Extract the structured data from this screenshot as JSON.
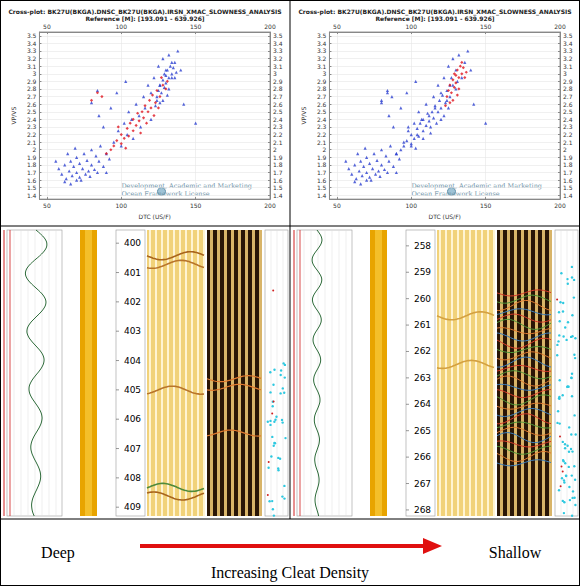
{
  "chart_data": [
    {
      "type": "scatter",
      "title": "Cross-plot: BK27U(BKGA).DNSC_BK27U(BKGA).IRSN_XMAC_SLOWNESS_ANALYSIS",
      "subtitle": "Reference [M]: [193.091 - 639.926]",
      "x_label": "DTC (US/F)",
      "y_label": "VP/VS",
      "xlim": [
        45,
        200
      ],
      "xticks": [
        50,
        100,
        150,
        200
      ],
      "ylim": [
        1.35,
        3.55
      ],
      "yticks": [
        1.4,
        1.5,
        1.6,
        1.7,
        1.8,
        1.9,
        2,
        2.1,
        2.2,
        2.3,
        2.4,
        2.5,
        2.6,
        2.7,
        2.8,
        2.9,
        3,
        3.1,
        3.2,
        3.3,
        3.4,
        3.5
      ],
      "grid": true,
      "series": [
        {
          "color": "#2a3fd0",
          "marker": "triangle",
          "x": [
            58,
            60,
            62,
            63,
            65,
            66,
            67,
            68,
            70,
            70,
            72,
            72,
            74,
            75,
            76,
            77,
            78,
            80,
            80,
            82,
            83,
            85,
            86,
            88,
            90,
            62,
            66,
            70,
            56,
            64,
            69,
            73,
            79,
            84,
            92,
            95,
            98,
            100,
            102,
            104,
            105,
            107,
            108,
            110,
            112,
            113,
            115,
            116,
            118,
            120,
            120,
            122,
            124,
            125,
            126,
            128,
            130,
            132,
            134,
            136,
            138,
            88,
            93,
            97,
            85,
            103,
            90,
            140,
            142,
            150,
            80,
            84,
            124,
            125,
            126,
            127,
            128,
            129,
            130,
            130,
            131,
            132,
            133,
            134,
            135,
            136,
            128,
            132,
            126,
            134,
            137,
            129,
            123,
            131
          ],
          "values": [
            1.75,
            1.68,
            1.8,
            1.62,
            1.72,
            1.85,
            1.66,
            1.78,
            1.7,
            1.9,
            1.64,
            1.82,
            1.75,
            1.95,
            1.68,
            1.86,
            1.72,
            1.8,
            2,
            1.74,
            1.92,
            1.85,
            2.05,
            1.78,
            1.95,
            1.58,
            1.55,
            1.6,
            1.85,
            1.95,
            2.02,
            1.6,
            1.65,
            1.7,
            1.88,
            2.1,
            2.25,
            2.05,
            2.35,
            2.2,
            2.5,
            2.4,
            2.15,
            2.6,
            2.45,
            2.3,
            2.7,
            2.55,
            2.85,
            2.4,
            2.75,
            2.95,
            2.65,
            3.1,
            2.85,
            3.2,
            3.05,
            3.25,
            2.95,
            3.15,
            3.3,
            2.3,
            2.55,
            2.75,
            2.45,
            2.9,
            1.7,
            3.05,
            2.6,
            2.35,
            2.62,
            2.78,
            2.7,
            2.78,
            2.85,
            2.75,
            2.92,
            2.82,
            2.98,
            2.88,
            3.05,
            2.95,
            3.1,
            3,
            3.08,
            2.95,
            2.65,
            2.8,
            2.62,
            3.15,
            3.02,
            3,
            2.58,
            2.72
          ]
        },
        {
          "color": "#e0141e",
          "marker": "diamond",
          "x": [
            90,
            93,
            95,
            97,
            100,
            100,
            102,
            104,
            105,
            106,
            108,
            108,
            110,
            111,
            112,
            114,
            115,
            116,
            118,
            119,
            120,
            121,
            123,
            124,
            126,
            128,
            130,
            98,
            103,
            113,
            117,
            122,
            125,
            80,
            84,
            87,
            127,
            131
          ],
          "values": [
            1.95,
            2,
            2.05,
            2.12,
            2.08,
            2.2,
            2.15,
            2.28,
            2.18,
            2.35,
            2.25,
            2.4,
            2.32,
            2.48,
            2.38,
            2.5,
            2.42,
            2.58,
            2.5,
            2.65,
            2.55,
            2.72,
            2.62,
            2.78,
            2.7,
            2.85,
            2.8,
            2.3,
            2.02,
            2.22,
            2.35,
            2.45,
            2.55,
            2.65,
            2.75,
            2.7,
            2.95,
            2.9
          ]
        }
      ]
    },
    {
      "type": "scatter",
      "title": "Cross-plot: BK27U(BKGA).DNSC_BK27U(BKGA).IRSN_XMAC_SLOWNESS_ANALYSIS",
      "subtitle": "Reference [M]: [193.091 - 639.926]",
      "x_label": "DTC (US/F)",
      "y_label": "VP/VS",
      "xlim": [
        45,
        200
      ],
      "xticks": [
        50,
        100,
        150,
        200
      ],
      "ylim": [
        1.35,
        3.55
      ],
      "yticks": [
        1.4,
        1.5,
        1.6,
        1.7,
        1.8,
        1.9,
        2,
        2.1,
        2.2,
        2.3,
        2.4,
        2.5,
        2.6,
        2.7,
        2.8,
        2.9,
        3,
        3.1,
        3.2,
        3.3,
        3.4,
        3.5
      ],
      "grid": true,
      "series": [
        {
          "color": "#2a3fd0",
          "marker": "triangle",
          "x": [
            58,
            60,
            62,
            63,
            65,
            66,
            67,
            68,
            70,
            70,
            72,
            72,
            74,
            75,
            76,
            77,
            78,
            80,
            80,
            82,
            83,
            85,
            86,
            88,
            90,
            62,
            66,
            70,
            56,
            64,
            69,
            73,
            79,
            84,
            92,
            95,
            98,
            100,
            102,
            104,
            105,
            107,
            108,
            110,
            112,
            113,
            115,
            116,
            118,
            120,
            120,
            122,
            124,
            125,
            126,
            128,
            130,
            132,
            134,
            136,
            138,
            88,
            93,
            97,
            85,
            103,
            90,
            140,
            142,
            150,
            80,
            84,
            90,
            93,
            95,
            97,
            100,
            100,
            102,
            104,
            105,
            106,
            108,
            108,
            110,
            111,
            112,
            114,
            115,
            116,
            118,
            119,
            120,
            121,
            123,
            124,
            126,
            128,
            130,
            98,
            103,
            113,
            117,
            122,
            125,
            80,
            84,
            87,
            127,
            131
          ],
          "values": [
            1.75,
            1.68,
            1.8,
            1.62,
            1.72,
            1.85,
            1.66,
            1.78,
            1.7,
            1.9,
            1.64,
            1.82,
            1.75,
            1.95,
            1.68,
            1.86,
            1.72,
            1.8,
            2,
            1.74,
            1.92,
            1.85,
            2.05,
            1.78,
            1.95,
            1.58,
            1.55,
            1.6,
            1.85,
            1.95,
            2.02,
            1.6,
            1.65,
            1.7,
            1.88,
            2.1,
            2.25,
            2.05,
            2.35,
            2.2,
            2.5,
            2.4,
            2.15,
            2.6,
            2.45,
            2.3,
            2.7,
            2.55,
            2.85,
            2.4,
            2.75,
            2.95,
            2.65,
            3.1,
            2.85,
            3.2,
            3.05,
            3.25,
            2.95,
            3.15,
            3.3,
            2.3,
            2.55,
            2.75,
            2.45,
            2.9,
            1.7,
            3.05,
            2.6,
            2.35,
            2.62,
            2.78,
            1.95,
            2,
            2.05,
            2.12,
            2.08,
            2.2,
            2.15,
            2.28,
            2.18,
            2.35,
            2.25,
            2.4,
            2.32,
            2.48,
            2.38,
            2.5,
            2.42,
            2.58,
            2.5,
            2.65,
            2.55,
            2.72,
            2.62,
            2.78,
            2.7,
            2.85,
            2.8,
            2.3,
            2.02,
            2.22,
            2.35,
            2.45,
            2.55,
            2.65,
            2.75,
            2.7,
            2.95,
            2.9
          ]
        },
        {
          "color": "#e0141e",
          "marker": "diamond",
          "x": [
            124,
            125,
            126,
            127,
            128,
            129,
            130,
            130,
            131,
            132,
            133,
            134,
            135,
            136,
            128,
            132,
            126,
            134,
            137,
            129,
            123,
            131
          ],
          "values": [
            2.7,
            2.78,
            2.85,
            2.75,
            2.92,
            2.82,
            2.98,
            2.88,
            3.05,
            2.95,
            3.1,
            3,
            3.08,
            2.95,
            2.65,
            2.8,
            2.62,
            3.15,
            3.02,
            3,
            2.58,
            2.72
          ]
        }
      ]
    }
  ],
  "watermark": [
    "Development, Academic and Marketing",
    "Ocean Framework License"
  ],
  "log_panels": [
    {
      "depth_range": [
        399.55,
        409.3
      ],
      "depth_ticks": [
        400,
        401,
        402,
        403,
        404,
        405,
        406,
        407,
        408,
        409
      ]
    },
    {
      "depth_range": [
        257.4,
        268.23
      ],
      "depth_ticks": [
        258,
        259,
        260,
        261,
        262,
        263,
        264,
        265,
        266,
        267,
        268
      ]
    }
  ],
  "caption": {
    "left": "Deep",
    "right": "Shallow",
    "arrow_label": "Increasing Cleat Density"
  }
}
